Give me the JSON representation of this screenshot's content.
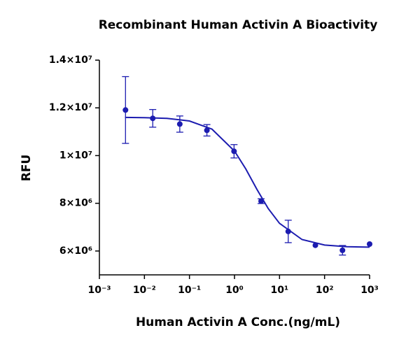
{
  "chart_data": {
    "type": "scatter",
    "title": "Recombinant Human Activin A Bioactivity",
    "x_label": "Human Activin A Conc.(ng/mL)",
    "y_label": "RFU",
    "color": "#1c1cb0",
    "x_log": true,
    "xlim": [
      0.001,
      1000
    ],
    "ylim": [
      5000000,
      14000000
    ],
    "xticks": [
      {
        "value": 0.001,
        "label": "10⁻³"
      },
      {
        "value": 0.01,
        "label": "10⁻²"
      },
      {
        "value": 0.1,
        "label": "10⁻¹"
      },
      {
        "value": 1,
        "label": "10⁰"
      },
      {
        "value": 10,
        "label": "10¹"
      },
      {
        "value": 100,
        "label": "10²"
      },
      {
        "value": 1000,
        "label": "10³"
      }
    ],
    "yticks": [
      {
        "value": 6000000,
        "label": "6×10⁶"
      },
      {
        "value": 8000000,
        "label": "8×10⁶"
      },
      {
        "value": 10000000,
        "label": "1×10⁷"
      },
      {
        "value": 12000000,
        "label": "1.2×10⁷"
      },
      {
        "value": 14000000,
        "label": "1.4×10⁷"
      }
    ],
    "points": {
      "x": [
        0.0038,
        0.0153,
        0.061,
        0.244,
        0.977,
        3.9,
        15.6,
        62.5,
        250,
        1000
      ],
      "values": [
        11910000,
        11560000,
        11320000,
        11060000,
        10180000,
        8090000,
        6820000,
        6240000,
        6030000,
        6290000
      ],
      "errors": [
        1400000,
        370000,
        340000,
        240000,
        280000,
        100000,
        470000,
        null,
        200000,
        null
      ]
    },
    "fit": {
      "x": [
        0.0037,
        0.01,
        0.0316,
        0.1,
        0.316,
        1,
        1.78,
        3.16,
        5.62,
        10,
        31.6,
        100,
        316,
        1000
      ],
      "values": [
        11600000,
        11590000,
        11560000,
        11450000,
        11110000,
        10190000,
        9440000,
        8580000,
        7780000,
        7160000,
        6480000,
        6250000,
        6180000,
        6160000
      ]
    }
  }
}
